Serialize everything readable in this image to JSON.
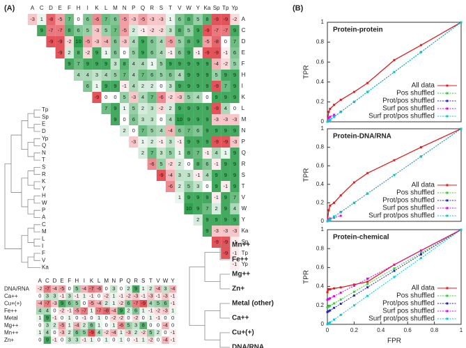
{
  "panel_a": {
    "label": "(A)",
    "matrix": {
      "columns": [
        "A",
        "C",
        "D",
        "E",
        "F",
        "H",
        "I",
        "K",
        "L",
        "M",
        "N",
        "P",
        "Q",
        "R",
        "S",
        "T",
        "V",
        "W",
        "Y",
        "Ka",
        "Sp",
        "Tp",
        "Yp"
      ],
      "rows": [
        {
          "label": "A",
          "values": [
            -3,
            1,
            -8,
            -5,
            7,
            0,
            6,
            -6,
            7,
            6,
            -5,
            -3,
            -5,
            -3,
            -3,
            1,
            6,
            8,
            5,
            8,
            -9,
            -9,
            -2
          ]
        },
        {
          "label": "C",
          "values": [
            9,
            -7,
            -7,
            8,
            6,
            5,
            -3,
            5,
            7,
            -5,
            2,
            -1,
            -2,
            -2,
            3,
            8,
            5,
            9,
            -9,
            -7,
            -7,
            9
          ]
        },
        {
          "label": "D",
          "values": [
            -9,
            -9,
            -2,
            10,
            -5,
            -3,
            -4,
            6,
            -3,
            4,
            9,
            6,
            4,
            -5,
            5,
            8,
            9,
            -5,
            -8,
            0,
            7
          ]
        },
        {
          "label": "E",
          "values": [
            -9,
            2,
            8,
            -2,
            9,
            1,
            6,
            0,
            5,
            9,
            6,
            4,
            -1,
            6,
            9,
            -1,
            -9,
            -9,
            -1,
            6
          ]
        },
        {
          "label": "F",
          "values": [
            9,
            7,
            9,
            9,
            9,
            3,
            8,
            4,
            4,
            1,
            5,
            9,
            9,
            9,
            9,
            9,
            -4,
            -2,
            5
          ]
        },
        {
          "label": "H",
          "values": [
            4,
            4,
            3,
            4,
            5,
            7,
            4,
            7,
            6,
            5,
            6,
            4,
            9,
            9,
            9,
            5,
            9,
            9
          ]
        },
        {
          "label": "I",
          "values": [
            6,
            1,
            9,
            9,
            -1,
            4,
            2,
            2,
            0,
            3,
            9,
            9,
            9,
            9,
            -9,
            7,
            9
          ]
        },
        {
          "label": "K",
          "values": [
            -9,
            0,
            0,
            5,
            -3,
            4,
            7,
            -6,
            -2,
            -3,
            5,
            4,
            0,
            9,
            9,
            9
          ]
        },
        {
          "label": "L",
          "values": [
            7,
            9,
            1,
            5,
            2,
            3,
            -2,
            2,
            9,
            9,
            9,
            9,
            -9,
            4,
            0
          ]
        },
        {
          "label": "M",
          "values": [
            9,
            0,
            6,
            3,
            3,
            0,
            4,
            10,
            9,
            9,
            9,
            -3,
            -3,
            -3
          ]
        },
        {
          "label": "N",
          "values": [
            2,
            0,
            7,
            5,
            4,
            -4,
            6,
            7,
            6,
            9,
            9,
            9,
            9
          ]
        },
        {
          "label": "P",
          "values": [
            -3,
            1,
            2,
            -1,
            3,
            -1,
            9,
            9,
            9,
            -9,
            -9,
            -3
          ]
        },
        {
          "label": "Q",
          "values": [
            2,
            7,
            3,
            5,
            1,
            8,
            7,
            -1,
            4,
            1,
            9
          ]
        },
        {
          "label": "R",
          "values": [
            -6,
            5,
            -2,
            2,
            0,
            8,
            6,
            -1,
            9,
            9
          ]
        },
        {
          "label": "S",
          "values": [
            -9,
            -4,
            3,
            3,
            -1,
            4,
            9,
            9,
            9
          ]
        },
        {
          "label": "T",
          "values": [
            -6,
            2,
            5,
            3,
            0,
            9,
            -1,
            9
          ]
        },
        {
          "label": "V",
          "values": [
            1,
            9,
            9,
            9,
            -1,
            9,
            7
          ]
        },
        {
          "label": "W",
          "values": [
            10,
            9,
            7,
            2,
            9,
            4
          ]
        },
        {
          "label": "Y",
          "values": [
            2,
            9,
            9,
            9,
            9
          ]
        },
        {
          "label": "Ka",
          "values": [
            9,
            -3,
            -3,
            -3
          ]
        },
        {
          "label": "Sp",
          "values": [
            -9,
            -9,
            -1
          ]
        },
        {
          "label": "Tp",
          "values": [
            -9,
            -1
          ]
        },
        {
          "label": "Yp",
          "values": [
            -1
          ]
        }
      ]
    },
    "leaves": [
      "Tp",
      "Sp",
      "E",
      "D",
      "Yp",
      "Q",
      "N",
      "T",
      "S",
      "R",
      "K",
      "Y",
      "H",
      "W",
      "P",
      "A",
      "C",
      "M",
      "L",
      "I",
      "F",
      "V",
      "Ka"
    ],
    "metal_matrix": {
      "columns": [
        "A",
        "C",
        "D",
        "E",
        "F",
        "H",
        "I",
        "K",
        "L",
        "M",
        "N",
        "P",
        "Q",
        "R",
        "S",
        "T",
        "V",
        "W",
        "Y"
      ],
      "rows": [
        {
          "label": "DNA/RNA",
          "values": [
            -2,
            -7,
            -4,
            -5,
            0,
            5,
            -4,
            -7,
            -6,
            0,
            3,
            0,
            2,
            9,
            1,
            2,
            -4,
            3,
            -4
          ]
        },
        {
          "label": "Ca++",
          "values": [
            0,
            3,
            3,
            -1,
            3,
            -1,
            1,
            -1,
            0,
            -2,
            1,
            -1,
            -2,
            -3,
            -1,
            -3,
            -1,
            -3,
            -1
          ]
        },
        {
          "label": "Cu+(+)",
          "values": [
            -4,
            -7,
            -3,
            9,
            6,
            5,
            0,
            -5,
            -4,
            2,
            1,
            -2,
            6,
            -7,
            -9,
            4,
            5,
            6,
            -1
          ]
        },
        {
          "label": "Fe++",
          "values": [
            4,
            4,
            0,
            -2,
            -1,
            -5,
            -7,
            1,
            -7,
            -8,
            -4,
            9,
            2,
            6,
            1,
            -1,
            -2,
            -3,
            1
          ]
        },
        {
          "label": "Metal",
          "values": [
            1,
            9,
            -1,
            0,
            1,
            0,
            -1,
            0,
            1,
            0,
            -2,
            -2,
            0,
            -2,
            0,
            1,
            -1,
            0,
            0
          ]
        },
        {
          "label": "Mg++",
          "values": [
            0,
            3,
            2,
            -5,
            1,
            -4,
            2,
            6,
            1,
            0,
            1,
            -6,
            5,
            3,
            8,
            0,
            0,
            -4,
            0
          ]
        },
        {
          "label": "Mn++",
          "values": [
            1,
            4,
            0,
            -3,
            2,
            6,
            5,
            -9,
            4,
            -2,
            -4,
            1,
            -3,
            2,
            -2,
            5,
            2,
            0,
            -1
          ]
        },
        {
          "label": "Zn+",
          "values": [
            0,
            9,
            -1,
            0,
            3,
            3,
            -1,
            1,
            0,
            1,
            0,
            1,
            0,
            -1,
            1,
            -2,
            0,
            -4,
            -1
          ]
        }
      ]
    },
    "metal_tree": [
      "Mn++",
      "Fe++",
      "Mg++",
      "Zn+",
      "Metal (other)",
      "Ca++",
      "Cu+(+)",
      "DNA/RNA"
    ]
  },
  "panel_b_label": "(B)",
  "chart_data": [
    {
      "type": "line",
      "title": "Protein-protein",
      "y_label": "TPR",
      "x": [
        0,
        0.01,
        0.02,
        0.05,
        0.1,
        0.2,
        0.3,
        0.5,
        0.7,
        1
      ],
      "series": [
        {
          "name": "All data",
          "color": "#e41a1c",
          "values": [
            0,
            0.1,
            0.13,
            0.17,
            0.22,
            0.3,
            0.39,
            0.62,
            0.77,
            1
          ]
        },
        {
          "name": "Pos shuffled",
          "color": "#33cc33",
          "values": [
            0,
            0.01,
            0.02,
            0.05,
            0.1,
            0.2,
            0.3,
            0.5,
            0.7,
            1
          ]
        },
        {
          "name": "Prot/pos shuffled",
          "color": "#2222cc",
          "values": [
            0,
            0.01,
            0.02,
            0.05,
            0.1,
            0.2,
            0.3,
            0.5,
            0.7,
            1
          ]
        },
        {
          "name": "Surf pos shuffled",
          "color": "#ee00ee",
          "values": [
            0,
            0.04,
            0.05,
            0.07,
            null,
            null,
            null,
            null,
            null,
            null
          ]
        },
        {
          "name": "Surf prot/pos shuffled",
          "color": "#00cccc",
          "values": [
            0,
            0.01,
            0.02,
            0.05,
            0.1,
            0.2,
            0.3,
            0.5,
            0.7,
            1
          ]
        }
      ],
      "xlim": [
        0,
        1
      ],
      "ylim": [
        0,
        1
      ],
      "yticks": [
        0,
        0.2,
        0.4,
        0.6,
        0.8,
        1
      ],
      "legend": "lower right"
    },
    {
      "type": "line",
      "title": "Protein-DNA/RNA",
      "y_label": "TPR",
      "x": [
        0,
        0.01,
        0.02,
        0.05,
        0.1,
        0.2,
        0.3,
        0.5,
        0.7,
        1
      ],
      "series": [
        {
          "name": "All data",
          "color": "#e41a1c",
          "values": [
            0,
            0.12,
            0.17,
            0.2,
            0.28,
            0.42,
            0.52,
            0.66,
            0.8,
            1
          ]
        },
        {
          "name": "Pos shuffled",
          "color": "#33cc33",
          "values": [
            0,
            0.01,
            0.02,
            0.05,
            0.1,
            0.2,
            0.3,
            0.5,
            0.7,
            1
          ]
        },
        {
          "name": "Prot/pos shuffled",
          "color": "#2222cc",
          "values": [
            0,
            0.01,
            0.02,
            0.05,
            0.1,
            0.2,
            0.3,
            0.5,
            0.7,
            1
          ]
        },
        {
          "name": "Surf pos shuffled",
          "color": "#ee00ee",
          "values": [
            0,
            0.02,
            0.03,
            0.04,
            0.06,
            null,
            null,
            null,
            null,
            null
          ]
        },
        {
          "name": "Surf prot/pos shuffled",
          "color": "#00cccc",
          "values": [
            0,
            0.01,
            0.02,
            0.05,
            0.1,
            0.2,
            0.3,
            0.5,
            0.7,
            1
          ]
        }
      ],
      "xlim": [
        0,
        1
      ],
      "ylim": [
        0,
        1
      ],
      "yticks": [
        0,
        0.2,
        0.4,
        0.6,
        0.8,
        1
      ],
      "legend": "lower right"
    },
    {
      "type": "line",
      "title": "Protein-chemical",
      "y_label": "TPR",
      "x_label": "FPR",
      "x": [
        0,
        0.01,
        0.02,
        0.05,
        0.1,
        0.2,
        0.3,
        0.5,
        0.7,
        1
      ],
      "series": [
        {
          "name": "All data",
          "color": "#e41a1c",
          "values": [
            0.34,
            0.37,
            0.37,
            0.38,
            0.39,
            0.42,
            0.45,
            0.63,
            0.78,
            1
          ]
        },
        {
          "name": "Pos shuffled",
          "color": "#33cc33",
          "values": [
            0.18,
            0.188,
            0.196,
            0.221,
            0.262,
            0.344,
            0.426,
            0.59,
            0.754,
            1
          ]
        },
        {
          "name": "Prot/pos shuffled",
          "color": "#2222cc",
          "values": [
            0.13,
            0.139,
            0.147,
            0.174,
            0.217,
            0.304,
            0.391,
            0.565,
            0.739,
            1
          ]
        },
        {
          "name": "Surf pos shuffled",
          "color": "#ee00ee",
          "values": [
            0.26,
            0.267,
            0.275,
            0.297,
            0.334,
            0.408,
            0.482,
            0.63,
            0.778,
            1
          ]
        },
        {
          "name": "Surf prot/pos shuffled",
          "color": "#00cccc",
          "values": [
            0,
            0.01,
            0.02,
            0.05,
            0.1,
            0.2,
            0.3,
            0.5,
            0.7,
            1
          ]
        }
      ],
      "xlim": [
        0,
        1
      ],
      "ylim": [
        0,
        1
      ],
      "xticks": [
        0,
        0.2,
        0.4,
        0.6,
        0.8,
        1
      ],
      "yticks": [
        0,
        0.2,
        0.4,
        0.6,
        0.8,
        1
      ],
      "legend": "lower right"
    }
  ]
}
